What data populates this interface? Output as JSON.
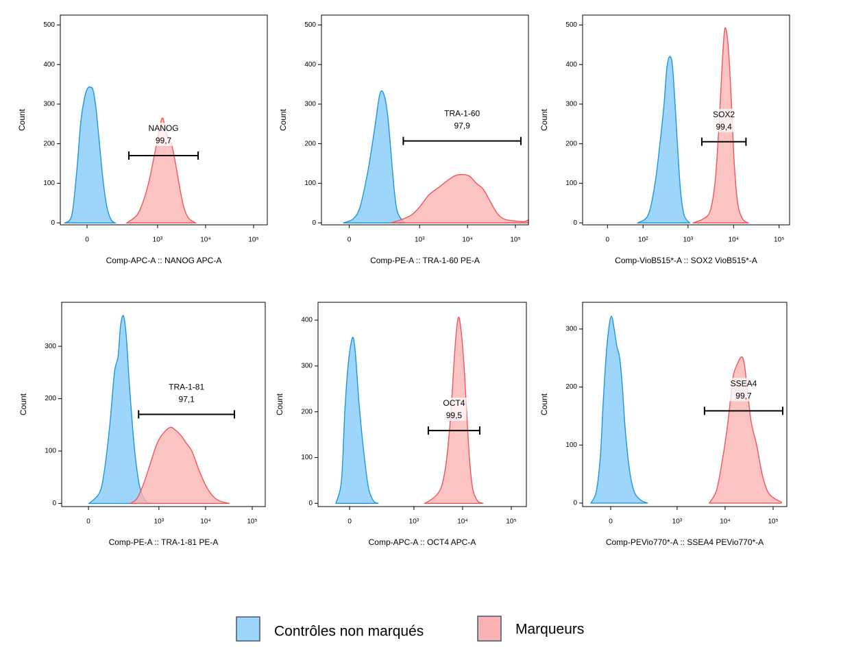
{
  "legend": [
    {
      "name": "Contrôles non marqués",
      "color": "#9dd5fb",
      "edgecolor": "#1e96dc"
    },
    {
      "name": "Marqueurs",
      "color": "#fbb2b2",
      "edgecolor": "#f0555a"
    }
  ],
  "chart_data": [
    {
      "type": "area",
      "xlabel": "Comp-APC-A :: NANOG APC-A",
      "ylabel": "Count",
      "xscale": "asinh",
      "xscale_cofactor": 68,
      "xlim": [
        -113,
        193000
      ],
      "ylim": [
        -5,
        525
      ],
      "xticks": [
        0,
        {
          "value": 1000,
          "label": "10³"
        },
        {
          "value": 10000,
          "label": "10⁴"
        },
        {
          "value": 100000,
          "label": "10⁵"
        }
      ],
      "yticks": [
        0,
        100,
        200,
        300,
        400,
        500
      ],
      "series": [
        {
          "x": [
            -86,
            -54,
            -35,
            -20,
            -7,
            2,
            11,
            20,
            30,
            43,
            57,
            75,
            97,
            122
          ],
          "values": [
            0,
            20,
            130,
            260,
            320,
            340,
            343,
            335,
            290,
            200,
            110,
            40,
            8,
            0
          ]
        },
        {
          "x": [
            224,
            372,
            520,
            677,
            853,
            1074,
            1268,
            1544,
            1944,
            2368,
            2889,
            3517,
            4428,
            6155
          ],
          "values": [
            0,
            20,
            60,
            110,
            170,
            230,
            265,
            225,
            200,
            150,
            90,
            40,
            12,
            0
          ]
        }
      ],
      "gate": {
        "name": "NANOG",
        "value": 99.7,
        "value_label": "99,7",
        "range": [
          248,
          7000
        ],
        "level": 170
      }
    },
    {
      "type": "area",
      "xlabel": "Comp-PE-A :: TRA-1-60 PE-A",
      "ylabel": "Count",
      "xscale": "asinh",
      "xscale_cofactor": 68,
      "xlim": [
        -120,
        187000
      ],
      "ylim": [
        -5,
        525
      ],
      "xticks": [
        0,
        {
          "value": 1000,
          "label": "10³"
        },
        {
          "value": 10000,
          "label": "10⁴"
        },
        {
          "value": 100000,
          "label": "10⁵"
        }
      ],
      "yticks": [
        0,
        100,
        200,
        300,
        400,
        500
      ],
      "series": [
        {
          "x": [
            -20,
            13,
            37,
            66,
            89,
            113,
            137,
            158,
            188,
            216,
            248,
            294,
            348,
            486
          ],
          "values": [
            0,
            10,
            40,
            120,
            190,
            260,
            320,
            333,
            310,
            260,
            180,
            80,
            25,
            0
          ]
        },
        {
          "x": [
            248,
            412,
            677,
            1000,
            1544,
            2530,
            4150,
            5715,
            7943,
            11040,
            15340,
            21320,
            29600,
            41120,
            57150,
            93600,
            153000,
            187000
          ],
          "values": [
            0,
            8,
            20,
            40,
            70,
            90,
            110,
            120,
            122,
            118,
            100,
            85,
            55,
            25,
            10,
            5,
            3,
            8
          ]
        }
      ],
      "gate": {
        "name": "TRA-1-60",
        "value": 97.9,
        "value_label": "97,9",
        "range": [
          455,
          130000
        ],
        "level": 207
      }
    },
    {
      "type": "area",
      "xlabel": "Comp-VioB515*-A :: SOX2 VioB515*-A",
      "ylabel": "Count",
      "xscale": "asinh",
      "xscale_cofactor": 34,
      "xlim": [
        -55,
        170000
      ],
      "ylim": [
        -5,
        525
      ],
      "xticks": [
        0,
        {
          "value": 100,
          "label": "10²"
        },
        {
          "value": 1000,
          "label": "10³"
        },
        {
          "value": 10000,
          "label": "10⁴"
        },
        {
          "value": 100000,
          "label": "10⁵"
        }
      ],
      "yticks": [
        0,
        100,
        200,
        300,
        400,
        500
      ],
      "series": [
        {
          "x": [
            75,
            131,
            187,
            240,
            296,
            341,
            392,
            451,
            519,
            597,
            686,
            817,
            1081
          ],
          "values": [
            0,
            20,
            100,
            200,
            300,
            390,
            420,
            400,
            300,
            180,
            80,
            20,
            0
          ]
        },
        {
          "x": [
            1276,
            2154,
            3055,
            3900,
            4642,
            5337,
            6138,
            6810,
            7830,
            9010,
            10360,
            12330,
            15740,
            20800
          ],
          "values": [
            0,
            10,
            30,
            100,
            220,
            350,
            470,
            490,
            430,
            300,
            150,
            50,
            10,
            0
          ]
        }
      ],
      "gate": {
        "name": "SOX2",
        "value": 99.4,
        "value_label": "99,4",
        "range": [
          2009,
          18740
        ],
        "level": 205
      }
    },
    {
      "type": "area",
      "xlabel": "Comp-PE-A :: TRA-1-81 PE-A",
      "ylabel": "Count",
      "xscale": "asinh",
      "xscale_cofactor": 62,
      "xlim": [
        -108,
        190000
      ],
      "ylim": [
        -6,
        384
      ],
      "xticks": [
        0,
        {
          "value": 1000,
          "label": "10³"
        },
        {
          "value": 10000,
          "label": "10⁴"
        },
        {
          "value": 100000,
          "label": "10⁵"
        }
      ],
      "yticks": [
        0,
        100,
        200,
        300
      ],
      "series": [
        {
          "x": [
            2,
            35,
            53,
            78,
            103,
            126,
            145,
            169,
            195,
            224,
            267,
            318,
            391,
            514,
            675
          ],
          "values": [
            0,
            20,
            60,
            150,
            250,
            280,
            340,
            358,
            320,
            240,
            150,
            80,
            30,
            5,
            0
          ]
        },
        {
          "x": [
            241,
            340,
            479,
            675,
            873,
            1145,
            1718,
            2254,
            2955,
            3875,
            5082,
            7130,
            10000,
            14030,
            19670,
            32700
          ],
          "values": [
            0,
            10,
            40,
            80,
            110,
            130,
            145,
            140,
            130,
            115,
            100,
            65,
            35,
            15,
            5,
            0
          ]
        }
      ],
      "gate": {
        "name": "TRA-1-81",
        "value": 97.1,
        "value_label": "97,1",
        "range": [
          365,
          41500
        ],
        "level": 170
      }
    },
    {
      "type": "area",
      "xlabel": "Comp-APC-A :: OCT4 APC-A",
      "ylabel": "Count",
      "xscale": "asinh",
      "xscale_cofactor": 96,
      "xlim": [
        -203,
        204000
      ],
      "ylim": [
        -7,
        439
      ],
      "xticks": [
        0,
        {
          "value": 1000,
          "label": "10³"
        },
        {
          "value": 10000,
          "label": "10⁴"
        },
        {
          "value": 100000,
          "label": "10⁵"
        }
      ],
      "yticks": [
        0,
        100,
        200,
        300,
        400
      ],
      "series": [
        {
          "x": [
            -67,
            -38,
            -22,
            -9,
            3,
            16,
            28,
            42,
            59,
            79,
            100,
            134,
            176
          ],
          "values": [
            0,
            50,
            200,
            290,
            340,
            362,
            320,
            230,
            150,
            80,
            30,
            5,
            0
          ]
        },
        {
          "x": [
            1680,
            2733,
            3776,
            4743,
            5768,
            6781,
            7716,
            8506,
            9680,
            11020,
            12550,
            14290,
            16260,
            20400,
            26470
          ],
          "values": [
            0,
            15,
            40,
            100,
            200,
            320,
            390,
            405,
            360,
            280,
            170,
            80,
            30,
            5,
            0
          ]
        }
      ],
      "gate": {
        "name": "OCT4",
        "value": 99.5,
        "value_label": "99,5",
        "range": [
          1977,
          22500
        ],
        "level": 159
      }
    },
    {
      "type": "area",
      "xlabel": "Comp-PEVio770*-A :: SSEA4 PEVio770*-A",
      "ylabel": "Count",
      "xscale": "asinh",
      "xscale_cofactor": 83,
      "xlim": [
        -149,
        193000
      ],
      "ylim": [
        -6,
        346
      ],
      "xticks": [
        0,
        {
          "value": 1000,
          "label": "10³"
        },
        {
          "value": 10000,
          "label": "10⁴"
        },
        {
          "value": 100000,
          "label": "10⁵"
        }
      ],
      "yticks": [
        0,
        100,
        200,
        300
      ],
      "series": [
        {
          "x": [
            -91,
            -62,
            -43,
            -31,
            -19,
            -8,
            3,
            14,
            25,
            37,
            49,
            62,
            84,
            114,
            167,
            238
          ],
          "values": [
            0,
            20,
            80,
            170,
            250,
            300,
            322,
            300,
            270,
            250,
            200,
            130,
            60,
            20,
            5,
            0
          ]
        },
        {
          "x": [
            4691,
            6517,
            8204,
            10680,
            13010,
            14840,
            18080,
            22030,
            25120,
            28640,
            34900,
            45400,
            59050,
            76900,
            106800,
            148400
          ],
          "values": [
            0,
            20,
            60,
            120,
            180,
            220,
            240,
            252,
            240,
            200,
            140,
            100,
            50,
            20,
            8,
            2
          ]
        }
      ],
      "gate": {
        "name": "SSEA4",
        "value": 99.7,
        "value_label": "99,7",
        "range": [
          3727,
          158500
        ],
        "level": 159
      }
    }
  ]
}
